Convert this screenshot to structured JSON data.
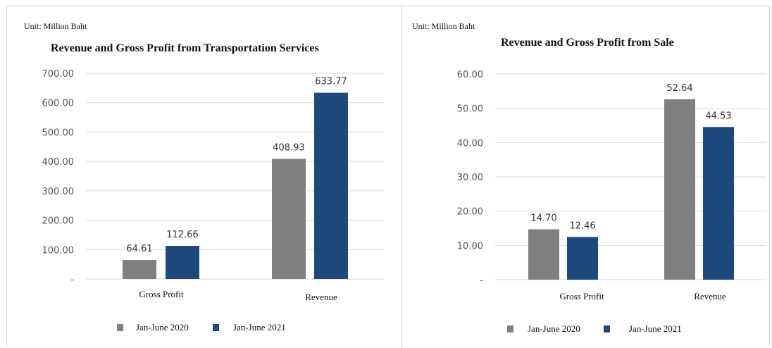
{
  "colors": {
    "jan_june_2020": "#7f7f7f",
    "jan_june_2021": "#1f497d",
    "grid": "#d9d9d9"
  },
  "chart_data": [
    {
      "type": "bar",
      "unit": "Unit: Million Baht",
      "title": "Revenue and Gross Profit from Transportation Services",
      "categories": [
        "Gross Profit",
        "Revenue"
      ],
      "series": [
        {
          "name": "Jan-June 2020",
          "values": [
            64.61,
            408.93
          ],
          "labels": [
            "64.61",
            "408.93"
          ]
        },
        {
          "name": "Jan-June 2021",
          "values": [
            112.66,
            633.77
          ],
          "labels": [
            "112.66",
            "633.77"
          ]
        }
      ],
      "yticks": [
        "-",
        "100.00",
        "200.00",
        "300.00",
        "400.00",
        "500.00",
        "600.00",
        "700.00"
      ],
      "ylim": [
        0,
        700
      ],
      "grid": true,
      "legend": "bottom"
    },
    {
      "type": "bar",
      "unit": "Unit: Million Baht",
      "title": "Revenue and Gross Profit from Sale",
      "categories": [
        "Gross Profit",
        "Revenue"
      ],
      "series": [
        {
          "name": "Jan-June 2020",
          "values": [
            14.7,
            52.64
          ],
          "labels": [
            "14.70",
            "52.64"
          ]
        },
        {
          "name": "Jan-June 2021",
          "values": [
            12.46,
            44.53
          ],
          "labels": [
            "12.46",
            "44.53"
          ]
        }
      ],
      "yticks": [
        "-",
        "10.00",
        "20.00",
        "30.00",
        "40.00",
        "50.00",
        "60.00"
      ],
      "ylim": [
        0,
        60
      ],
      "grid": true,
      "legend": "bottom"
    }
  ]
}
